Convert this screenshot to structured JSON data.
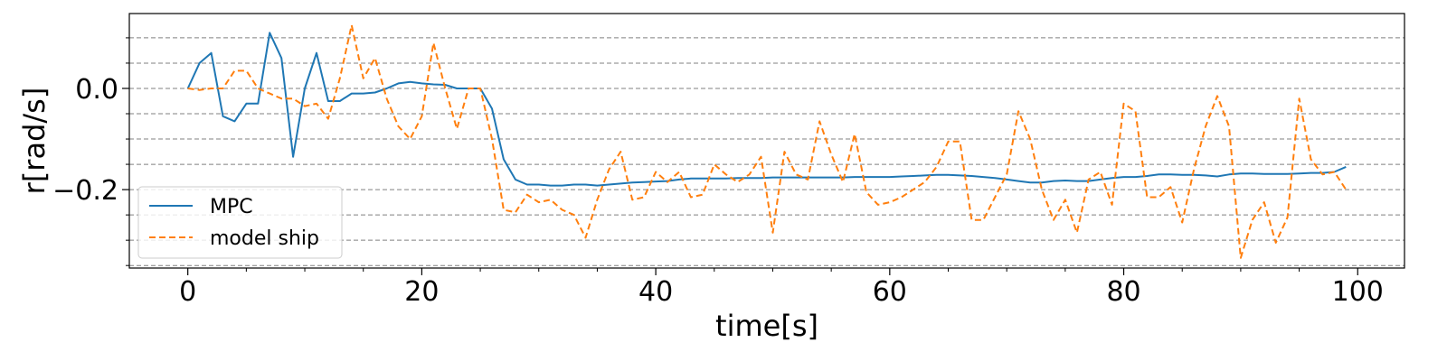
{
  "chart_data": {
    "type": "line",
    "title": "",
    "xlabel": "time[s]",
    "ylabel": "r[rad/s]",
    "xlim": [
      -5,
      104
    ],
    "ylim": [
      -0.355,
      0.148
    ],
    "xticks": [
      0,
      20,
      40,
      60,
      80,
      100
    ],
    "xtick_labels": [
      "0",
      "20",
      "40",
      "60",
      "80",
      "100"
    ],
    "yticks": [
      0.0,
      -0.2
    ],
    "ytick_labels": [
      "0.0",
      "−0.2"
    ],
    "y_minor_ticks": [
      0.1,
      0.05,
      -0.05,
      -0.1,
      -0.15,
      -0.25,
      -0.3,
      -0.35
    ],
    "x_minor_step": 5,
    "grid": "horizontal dashed",
    "legend_position": "lower-left",
    "series": [
      {
        "name": "MPC",
        "style": "solid",
        "color": "#1f77b4",
        "x": [
          0,
          1,
          2,
          3,
          4,
          5,
          6,
          7,
          8,
          9,
          10,
          11,
          12,
          13,
          14,
          15,
          16,
          17,
          18,
          19,
          20,
          21,
          22,
          23,
          24,
          25,
          26,
          27,
          28,
          29,
          30,
          31,
          32,
          33,
          34,
          35,
          36,
          37,
          38,
          39,
          40,
          41,
          42,
          43,
          44,
          45,
          46,
          47,
          48,
          49,
          50,
          51,
          52,
          53,
          54,
          55,
          56,
          57,
          58,
          59,
          60,
          61,
          62,
          63,
          64,
          65,
          66,
          67,
          68,
          69,
          70,
          71,
          72,
          73,
          74,
          75,
          76,
          77,
          78,
          79,
          80,
          81,
          82,
          83,
          84,
          85,
          86,
          87,
          88,
          89,
          90,
          91,
          92,
          93,
          94,
          95,
          96,
          97,
          98,
          99
        ],
        "y": [
          0.0,
          0.05,
          0.07,
          -0.055,
          -0.065,
          -0.03,
          -0.03,
          0.11,
          0.06,
          -0.135,
          0.0,
          0.07,
          -0.025,
          -0.025,
          -0.01,
          -0.01,
          -0.008,
          0.0,
          0.01,
          0.013,
          0.01,
          0.008,
          0.007,
          0.0,
          0.0,
          0.0,
          -0.04,
          -0.14,
          -0.18,
          -0.19,
          -0.19,
          -0.192,
          -0.192,
          -0.19,
          -0.19,
          -0.192,
          -0.19,
          -0.188,
          -0.186,
          -0.185,
          -0.184,
          -0.183,
          -0.18,
          -0.178,
          -0.178,
          -0.178,
          -0.178,
          -0.177,
          -0.177,
          -0.177,
          -0.176,
          -0.176,
          -0.176,
          -0.176,
          -0.176,
          -0.176,
          -0.176,
          -0.175,
          -0.175,
          -0.175,
          -0.175,
          -0.174,
          -0.173,
          -0.172,
          -0.171,
          -0.171,
          -0.172,
          -0.173,
          -0.175,
          -0.177,
          -0.18,
          -0.183,
          -0.186,
          -0.186,
          -0.183,
          -0.182,
          -0.183,
          -0.183,
          -0.18,
          -0.177,
          -0.175,
          -0.175,
          -0.173,
          -0.17,
          -0.17,
          -0.171,
          -0.171,
          -0.172,
          -0.174,
          -0.17,
          -0.168,
          -0.168,
          -0.169,
          -0.169,
          -0.169,
          -0.168,
          -0.167,
          -0.167,
          -0.165,
          -0.155
        ]
      },
      {
        "name": "model ship",
        "style": "dashed",
        "color": "#ff7f0e",
        "x": [
          0,
          1,
          2,
          3,
          4,
          5,
          6,
          7,
          8,
          9,
          10,
          11,
          12,
          13,
          14,
          15,
          16,
          17,
          18,
          19,
          20,
          21,
          22,
          23,
          24,
          25,
          26,
          27,
          28,
          29,
          30,
          31,
          32,
          33,
          34,
          35,
          36,
          37,
          38,
          39,
          40,
          41,
          42,
          43,
          44,
          45,
          46,
          47,
          48,
          49,
          50,
          51,
          52,
          53,
          54,
          55,
          56,
          57,
          58,
          59,
          60,
          61,
          62,
          63,
          64,
          65,
          66,
          67,
          68,
          69,
          70,
          71,
          72,
          73,
          74,
          75,
          76,
          77,
          78,
          79,
          80,
          81,
          82,
          83,
          84,
          85,
          86,
          87,
          88,
          89,
          90,
          91,
          92,
          93,
          94,
          95,
          96,
          97,
          98,
          99
        ],
        "y": [
          0.0,
          -0.003,
          0.0,
          0.0,
          0.035,
          0.035,
          0.0,
          -0.01,
          -0.02,
          -0.02,
          -0.035,
          -0.03,
          -0.06,
          0.02,
          0.125,
          0.02,
          0.06,
          -0.02,
          -0.075,
          -0.1,
          -0.055,
          0.09,
          0.0,
          -0.08,
          0.0,
          0.0,
          -0.1,
          -0.24,
          -0.245,
          -0.21,
          -0.225,
          -0.22,
          -0.24,
          -0.25,
          -0.295,
          -0.22,
          -0.16,
          -0.125,
          -0.22,
          -0.215,
          -0.165,
          -0.185,
          -0.165,
          -0.215,
          -0.21,
          -0.15,
          -0.17,
          -0.185,
          -0.17,
          -0.135,
          -0.285,
          -0.125,
          -0.17,
          -0.18,
          -0.065,
          -0.13,
          -0.185,
          -0.09,
          -0.205,
          -0.23,
          -0.225,
          -0.215,
          -0.2,
          -0.185,
          -0.155,
          -0.105,
          -0.105,
          -0.26,
          -0.26,
          -0.215,
          -0.17,
          -0.045,
          -0.1,
          -0.2,
          -0.26,
          -0.22,
          -0.285,
          -0.18,
          -0.165,
          -0.23,
          -0.03,
          -0.045,
          -0.215,
          -0.215,
          -0.195,
          -0.265,
          -0.16,
          -0.075,
          -0.015,
          -0.075,
          -0.335,
          -0.26,
          -0.225,
          -0.305,
          -0.255,
          -0.02,
          -0.14,
          -0.17,
          -0.165,
          -0.2
        ]
      }
    ]
  }
}
